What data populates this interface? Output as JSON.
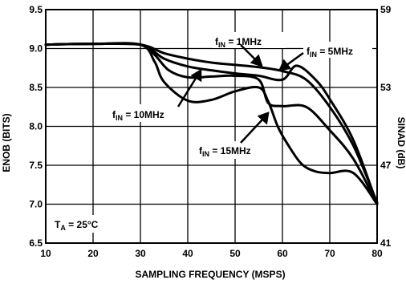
{
  "chart_data": {
    "type": "line",
    "title": "",
    "xlabel": "SAMPLING FREQUENCY (MSPS)",
    "ylabel": "ENOB (BITS)",
    "y2label": "SINAD (dB)",
    "xlim": [
      10,
      80
    ],
    "ylim": [
      6.5,
      9.5
    ],
    "y2lim": [
      41,
      59
    ],
    "x_ticks": [
      "10",
      "20",
      "30",
      "40",
      "50",
      "60",
      "70",
      "80"
    ],
    "y_ticks": [
      "6.5",
      "7.0",
      "7.5",
      "8.0",
      "8.5",
      "9.0",
      "9.5"
    ],
    "y2_ticks": [
      "41",
      "47",
      "53",
      "59"
    ],
    "grid": true,
    "series": [
      {
        "name": "fIN = 1MHz",
        "x": [
          10,
          20,
          30,
          35,
          40,
          45,
          50,
          55,
          60,
          65,
          70,
          75,
          80
        ],
        "y": [
          9.05,
          9.06,
          9.05,
          8.94,
          8.87,
          8.82,
          8.79,
          8.76,
          8.71,
          8.6,
          8.25,
          7.75,
          7.02
        ]
      },
      {
        "name": "fIN = 5MHz",
        "x": [
          10,
          20,
          30,
          35,
          40,
          45,
          50,
          55,
          60,
          63,
          67,
          70,
          75,
          80
        ],
        "y": [
          9.05,
          9.06,
          9.05,
          8.87,
          8.77,
          8.72,
          8.68,
          8.65,
          8.6,
          8.78,
          8.6,
          8.35,
          7.82,
          7.0
        ]
      },
      {
        "name": "fIN = 10MHz",
        "x": [
          10,
          20,
          30,
          33,
          36,
          40,
          45,
          50,
          55,
          57,
          60,
          65,
          70,
          75,
          80
        ],
        "y": [
          9.05,
          9.06,
          9.05,
          8.92,
          8.72,
          8.63,
          8.64,
          8.65,
          8.6,
          8.3,
          8.26,
          8.25,
          7.95,
          7.58,
          7.0
        ]
      },
      {
        "name": "fIN = 15MHz",
        "x": [
          10,
          20,
          30,
          33,
          35,
          40,
          45,
          50,
          55,
          57,
          59,
          61,
          64,
          67,
          70,
          75,
          80
        ],
        "y": [
          9.05,
          9.06,
          9.05,
          8.83,
          8.57,
          8.33,
          8.34,
          8.45,
          8.5,
          8.32,
          8.0,
          7.78,
          7.52,
          7.42,
          7.4,
          7.4,
          7.0
        ]
      }
    ],
    "annotations": [
      {
        "id": "ann-1",
        "pre": "f",
        "sub": "IN",
        "post": " = 1MHz"
      },
      {
        "id": "ann-5",
        "pre": "f",
        "sub": "IN",
        "post": " = 5MHz"
      },
      {
        "id": "ann-10",
        "pre": "f",
        "sub": "IN",
        "post": " = 10MHz"
      },
      {
        "id": "ann-15",
        "pre": "f",
        "sub": "IN",
        "post": " = 15MHz"
      },
      {
        "id": "ann-temp",
        "pre": "T",
        "sub": "A",
        "post": " = 25°C"
      }
    ]
  }
}
